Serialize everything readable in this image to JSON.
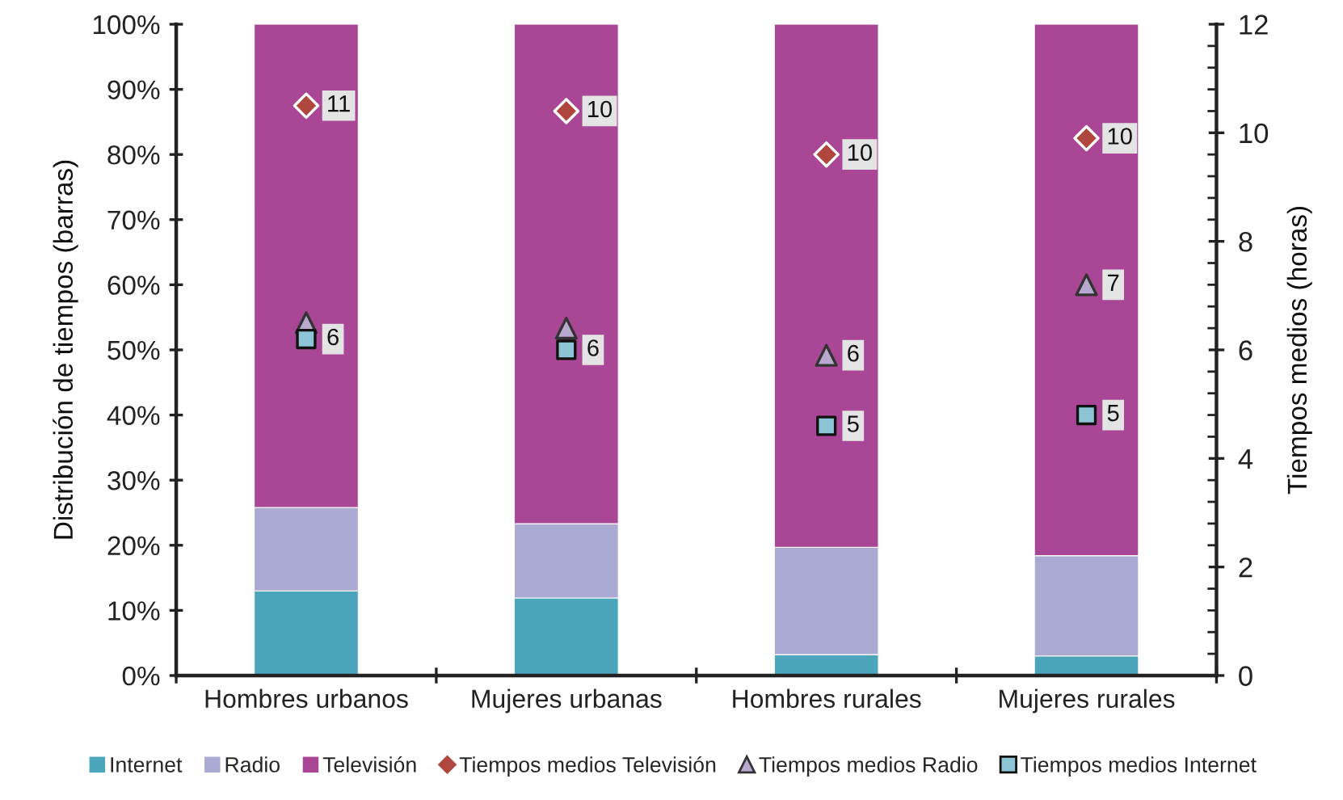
{
  "chart_data": {
    "type": "bar",
    "stacked": true,
    "categories": [
      "Hombres urbanos",
      "Mujeres urbanas",
      "Hombres rurales",
      "Mujeres rurales"
    ],
    "series": [
      {
        "name": "Internet",
        "color": "#4ba6bc",
        "values": [
          13.0,
          11.9,
          3.2,
          3.0
        ]
      },
      {
        "name": "Radio",
        "color": "#abaad2",
        "values": [
          12.8,
          11.4,
          16.5,
          15.4
        ]
      },
      {
        "name": "Televisión",
        "color": "#a94796",
        "values": [
          74.2,
          76.7,
          80.3,
          81.6
        ]
      },
      {
        "name": "Tiempos medios Televisión",
        "type": "scatter",
        "axis": "y2",
        "marker": "diamond",
        "color": "#b0473e",
        "values": [
          10.5,
          10.4,
          9.6,
          9.9
        ],
        "value_labels": [
          "11",
          "10",
          "10",
          "10"
        ]
      },
      {
        "name": "Tiempos medios Radio",
        "type": "scatter",
        "axis": "y2",
        "marker": "triangle",
        "color": "#b9a9cf",
        "values": [
          6.5,
          6.4,
          5.9,
          7.2
        ],
        "value_labels": [
          null,
          null,
          "6",
          "7"
        ]
      },
      {
        "name": "Tiempos medios Internet",
        "type": "scatter",
        "axis": "y2",
        "marker": "square",
        "color": "#8ec5d6",
        "values": [
          6.2,
          6.0,
          4.6,
          4.8
        ],
        "value_labels": [
          "6",
          "6",
          "5",
          "5"
        ]
      }
    ],
    "ylabel": "Distribución de tiempos (barras)",
    "y2label": "Tiempos medios (horas)",
    "ylim": [
      0,
      100
    ],
    "yticks": [
      {
        "value": 0,
        "label": "0%"
      },
      {
        "value": 10,
        "label": "10%"
      },
      {
        "value": 20,
        "label": "20%"
      },
      {
        "value": 30,
        "label": "30%"
      },
      {
        "value": 40,
        "label": "40%"
      },
      {
        "value": 50,
        "label": "50%"
      },
      {
        "value": 60,
        "label": "60%"
      },
      {
        "value": 70,
        "label": "70%"
      },
      {
        "value": 80,
        "label": "80%"
      },
      {
        "value": 90,
        "label": "90%"
      },
      {
        "value": 100,
        "label": "100%"
      }
    ],
    "y2lim": [
      0,
      12
    ],
    "y2ticks": [
      0,
      2,
      4,
      6,
      8,
      10,
      12,
      {
        "value": 0.4,
        "label": null
      },
      {
        "value": 0.8,
        "label": null
      },
      {
        "value": 1.2,
        "label": null
      },
      {
        "value": 1.6,
        "label": null
      },
      {
        "value": 2.4,
        "label": null
      },
      {
        "value": 2.8,
        "label": null
      },
      {
        "value": 3.2,
        "label": null
      },
      {
        "value": 3.6,
        "label": null
      },
      {
        "value": 4.4,
        "label": null
      },
      {
        "value": 4.8,
        "label": null
      },
      {
        "value": 5.2,
        "label": null
      },
      {
        "value": 5.6,
        "label": null
      },
      {
        "value": 6.4,
        "label": null
      },
      {
        "value": 6.8,
        "label": null
      },
      {
        "value": 7.2,
        "label": null
      },
      {
        "value": 7.6,
        "label": null
      },
      {
        "value": 8.4,
        "label": null
      },
      {
        "value": 8.8,
        "label": null
      },
      {
        "value": 9.2,
        "label": null
      },
      {
        "value": 9.6,
        "label": null
      },
      {
        "value": 10.4,
        "label": null
      },
      {
        "value": 10.8,
        "label": null
      },
      {
        "value": 11.2,
        "label": null
      },
      {
        "value": 11.6,
        "label": null
      }
    ],
    "legend": "bottom"
  }
}
